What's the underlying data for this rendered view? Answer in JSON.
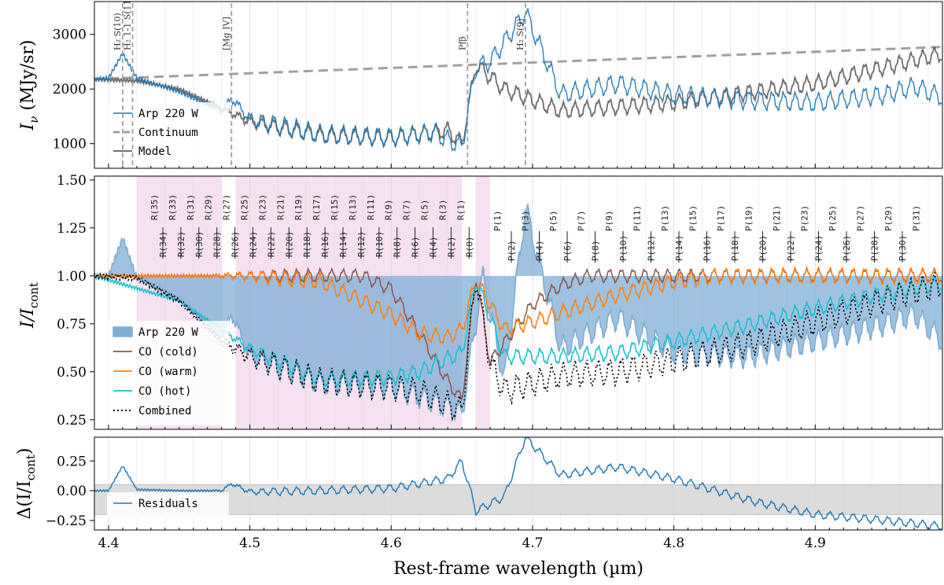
{
  "colors": {
    "observed": "#1f77b4",
    "observed_fill": "#7eaed4",
    "continuum": "#a0a0a0",
    "model": "#6e6e6e",
    "co_cold": "#8c564b",
    "co_warm": "#ff7f0e",
    "co_hot": "#17becf",
    "combined": "#000000",
    "masked": "#f5dcef",
    "residual_band": "#dcdcdc"
  },
  "xaxis": {
    "label": "Rest-frame wavelength (µm)",
    "range": [
      4.39,
      4.99
    ],
    "ticks": [
      "4.4",
      "4.5",
      "4.6",
      "4.7",
      "4.8",
      "4.9"
    ],
    "grid": true
  },
  "panels": {
    "top": {
      "ylabel_main": "I",
      "ylabel_sub": "ν",
      "ylabel_units": " (MJy/sr)",
      "ylim": [
        550,
        3600
      ],
      "ticks": [
        "1000",
        "2000",
        "3000"
      ],
      "legend": [
        "Arp 220 W",
        "Continuum",
        "Model"
      ],
      "line_markers": [
        {
          "label": "H₂ S(10)",
          "x": 4.41
        },
        {
          "label": "H₂ 1-1 S(11)",
          "x": 4.417
        },
        {
          "label": "[Mg IV]",
          "x": 4.487
        },
        {
          "label": "Pfβ",
          "x": 4.654
        },
        {
          "label": "H₂ S(9)",
          "x": 4.695
        }
      ]
    },
    "middle": {
      "ylabel_main": "I/I",
      "ylabel_sub": "cont",
      "ylim": [
        0.2,
        1.52
      ],
      "ticks": [
        "0.25",
        "0.50",
        "0.75",
        "1.00",
        "1.25",
        "1.50"
      ],
      "legend": [
        "Arp 220 W",
        "CO (cold)",
        "CO (warm)",
        "CO (hot)",
        "Combined"
      ],
      "masked_regions": [
        [
          4.42,
          4.48
        ],
        [
          4.49,
          4.65
        ],
        [
          4.66,
          4.67
        ]
      ],
      "r_branch_upper": [
        "R(35)",
        "R(33)",
        "R(31)",
        "R(29)",
        "R(27)",
        "R(25)",
        "R(23)",
        "R(21)",
        "R(19)",
        "R(17)",
        "R(15)",
        "R(13)",
        "R(11)",
        "R(9)",
        "R(7)",
        "R(5)",
        "R(3)",
        "R(1)"
      ],
      "r_branch_lower": [
        "R(34)",
        "R(32)",
        "R(30)",
        "R(28)",
        "R(26)",
        "R(24)",
        "R(22)",
        "R(20)",
        "R(18)",
        "R(16)",
        "R(14)",
        "R(12)",
        "R(10)",
        "R(8)",
        "R(6)",
        "R(4)",
        "R(2)",
        "R(0)"
      ],
      "p_branch_upper": [
        "P(1)",
        "P(3)",
        "P(5)",
        "P(7)",
        "P(9)",
        "P(11)",
        "P(13)",
        "P(15)",
        "P(17)",
        "P(19)",
        "P(21)",
        "P(23)",
        "P(25)",
        "P(27)",
        "P(29)",
        "P(31)"
      ],
      "p_branch_lower": [
        "P(2)",
        "P(4)",
        "P(6)",
        "P(8)",
        "P(10)",
        "P(12)",
        "P(14)",
        "P(16)",
        "P(18)",
        "P(20)",
        "P(22)",
        "P(24)",
        "P(26)",
        "P(28)",
        "P(30)"
      ]
    },
    "bottom": {
      "ylabel_main": "Δ(I/I",
      "ylabel_sub": "cont",
      "ylabel_end": ")",
      "ylim": [
        -0.33,
        0.45
      ],
      "ticks": [
        "0.25",
        "0.00",
        "−0.25"
      ],
      "tick_values": [
        0.25,
        0.0,
        -0.25
      ],
      "band": [
        -0.2,
        0.05
      ],
      "legend": [
        "Residuals"
      ]
    }
  },
  "chart_data": {
    "type": "line",
    "x_units": "µm",
    "series": [
      {
        "name": "Arp 220 W",
        "panel": "top",
        "x": [
          4.39,
          4.4,
          4.41,
          4.42,
          4.45,
          4.48,
          4.487,
          4.5,
          4.55,
          4.6,
          4.63,
          4.65,
          4.66,
          4.67,
          4.695,
          4.72,
          4.76,
          4.8,
          4.85,
          4.9,
          4.95,
          4.97,
          4.99
        ],
        "y": [
          2180,
          2200,
          2650,
          2200,
          1950,
          1600,
          1830,
          1450,
          1180,
          1120,
          1200,
          950,
          2400,
          2500,
          3400,
          1900,
          2100,
          1900,
          1800,
          1750,
          1900,
          2050,
          1850
        ]
      },
      {
        "name": "Continuum",
        "panel": "top",
        "x": [
          4.39,
          4.99
        ],
        "y": [
          2180,
          2770
        ]
      },
      {
        "name": "Model",
        "panel": "top",
        "x": [
          4.39,
          4.42,
          4.45,
          4.48,
          4.5,
          4.55,
          4.6,
          4.64,
          4.65,
          4.66,
          4.68,
          4.72,
          4.8,
          4.9,
          4.99
        ],
        "y": [
          2180,
          2150,
          2000,
          1650,
          1400,
          1150,
          1100,
          1250,
          1000,
          2450,
          2000,
          1600,
          1750,
          2100,
          2650
        ]
      },
      {
        "name": "Arp 220 W",
        "panel": "middle",
        "x": [
          4.39,
          4.4,
          4.41,
          4.42,
          4.45,
          4.48,
          4.487,
          4.5,
          4.55,
          4.6,
          4.64,
          4.65,
          4.665,
          4.68,
          4.695,
          4.72,
          4.76,
          4.8,
          4.85,
          4.9,
          4.95,
          4.97,
          4.99
        ],
        "y": [
          1.0,
          1.0,
          1.2,
          0.99,
          0.88,
          0.68,
          0.8,
          0.58,
          0.44,
          0.42,
          0.32,
          0.28,
          1.0,
          0.45,
          1.36,
          0.62,
          0.78,
          0.6,
          0.58,
          0.66,
          0.75,
          0.8,
          0.66
        ]
      },
      {
        "name": "CO (cold)",
        "panel": "middle",
        "x": [
          4.39,
          4.58,
          4.6,
          4.62,
          4.64,
          4.65,
          4.66,
          4.67,
          4.68,
          4.7,
          4.72,
          4.74,
          4.99
        ],
        "y": [
          1.0,
          1.0,
          0.93,
          0.7,
          0.45,
          0.35,
          1.0,
          0.55,
          0.65,
          0.85,
          0.95,
          1.0,
          1.0
        ]
      },
      {
        "name": "CO (warm)",
        "panel": "middle",
        "x": [
          4.39,
          4.5,
          4.55,
          4.6,
          4.62,
          4.64,
          4.65,
          4.66,
          4.68,
          4.7,
          4.73,
          4.76,
          4.8,
          4.83,
          4.99
        ],
        "y": [
          1.0,
          1.0,
          0.97,
          0.8,
          0.7,
          0.68,
          0.72,
          0.98,
          0.72,
          0.76,
          0.83,
          0.9,
          0.97,
          1.0,
          1.0
        ]
      },
      {
        "name": "CO (hot)",
        "panel": "middle",
        "x": [
          4.39,
          4.45,
          4.5,
          4.55,
          4.6,
          4.62,
          4.64,
          4.65,
          4.66,
          4.68,
          4.72,
          4.76,
          4.8,
          4.85,
          4.9,
          4.95,
          4.99
        ],
        "y": [
          1.0,
          0.87,
          0.62,
          0.46,
          0.47,
          0.5,
          0.57,
          0.6,
          0.98,
          0.58,
          0.58,
          0.6,
          0.66,
          0.74,
          0.83,
          0.91,
          0.96
        ]
      },
      {
        "name": "Combined",
        "panel": "middle",
        "x": [
          4.39,
          4.42,
          4.45,
          4.48,
          4.5,
          4.55,
          4.6,
          4.62,
          4.64,
          4.65,
          4.66,
          4.67,
          4.68,
          4.72,
          4.76,
          4.8,
          4.85,
          4.9,
          4.95,
          4.99
        ],
        "y": [
          1.0,
          0.99,
          0.87,
          0.66,
          0.58,
          0.45,
          0.42,
          0.4,
          0.33,
          0.3,
          1.0,
          0.55,
          0.4,
          0.48,
          0.5,
          0.56,
          0.64,
          0.76,
          0.88,
          0.96
        ]
      },
      {
        "name": "Residuals",
        "panel": "bottom",
        "x": [
          4.39,
          4.4,
          4.41,
          4.42,
          4.45,
          4.48,
          4.487,
          4.5,
          4.55,
          4.6,
          4.62,
          4.64,
          4.65,
          4.66,
          4.68,
          4.695,
          4.72,
          4.76,
          4.8,
          4.83,
          4.86,
          4.9,
          4.95,
          4.99
        ],
        "y": [
          0.0,
          0.0,
          0.21,
          0.01,
          0.0,
          0.0,
          0.06,
          -0.01,
          0.0,
          0.02,
          0.06,
          0.1,
          0.25,
          -0.17,
          -0.05,
          0.45,
          0.13,
          0.2,
          0.1,
          0.0,
          -0.1,
          -0.2,
          -0.25,
          -0.3
        ]
      }
    ]
  }
}
